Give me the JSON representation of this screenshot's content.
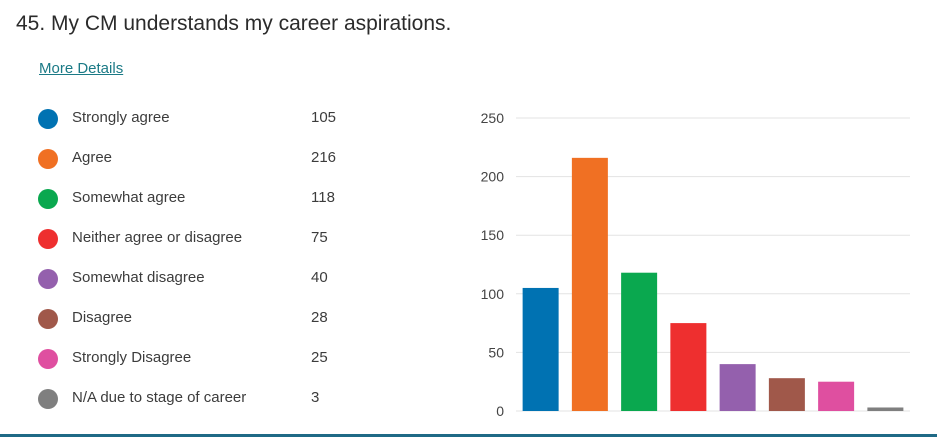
{
  "question": {
    "title": "45.  My CM understands my career aspirations.",
    "more_details": "More Details"
  },
  "chart_data": {
    "type": "bar",
    "categories": [
      "Strongly agree",
      "Agree",
      "Somewhat agree",
      "Neither agree or disagree",
      "Somewhat disagree",
      "Disagree",
      "Strongly Disagree",
      "N/A due to stage of career"
    ],
    "values": [
      105,
      216,
      118,
      75,
      40,
      28,
      25,
      3
    ],
    "colors": [
      "#0072b2",
      "#f07023",
      "#0aa84f",
      "#ee2f2f",
      "#9460ad",
      "#a0584a",
      "#df4fa0",
      "#7f7f7f"
    ],
    "ylim": [
      0,
      250
    ],
    "yticks": [
      0,
      50,
      100,
      150,
      200,
      250
    ],
    "grid": true,
    "legend_placement": "left"
  }
}
